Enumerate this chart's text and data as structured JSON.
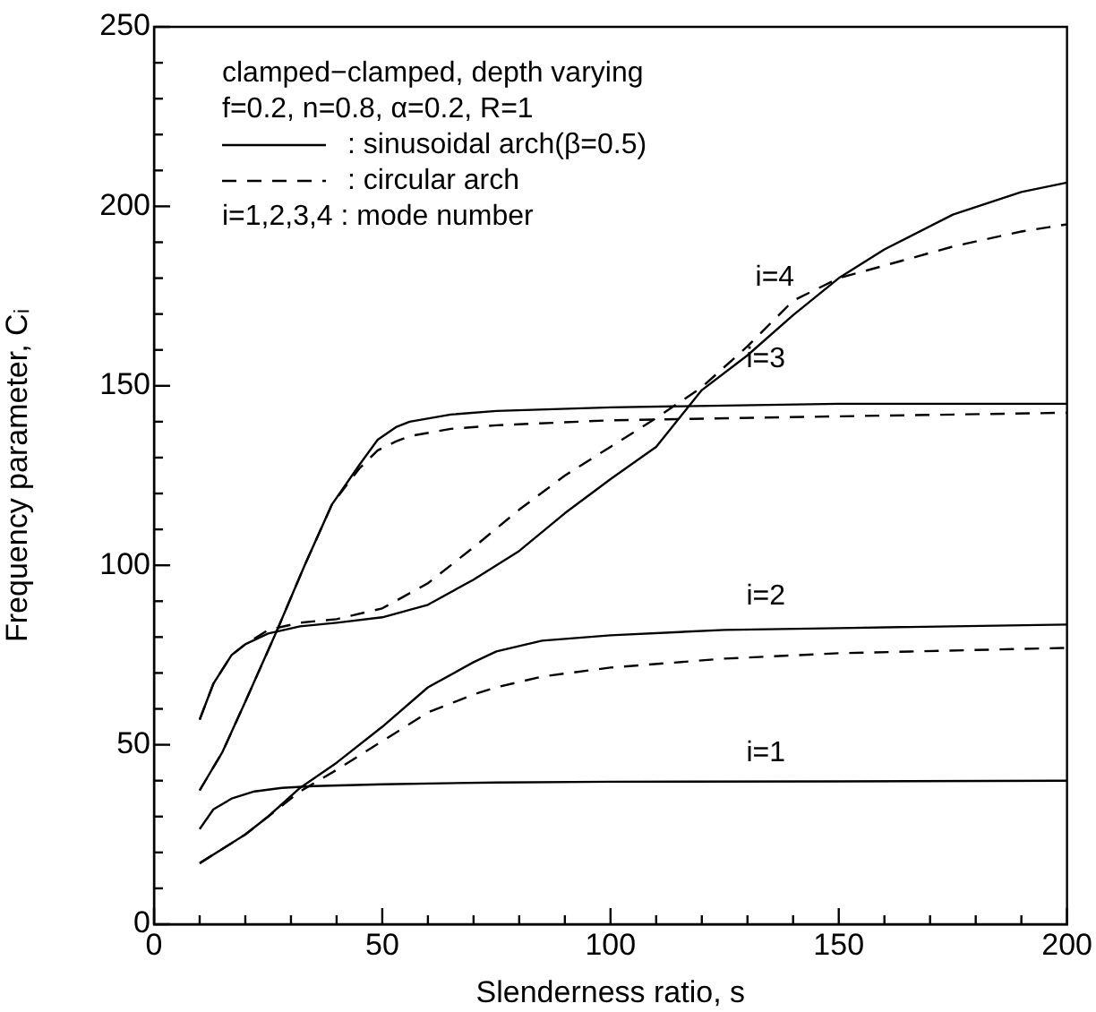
{
  "chart_data": {
    "type": "line",
    "xlabel": "Slenderness ratio, s",
    "ylabel": "Frequency parameter, Cᵢ",
    "xlim": [
      0,
      200
    ],
    "ylim": [
      0,
      250
    ],
    "xticks": [
      0,
      {
        "value": 10,
        "label": null
      },
      {
        "value": 20,
        "label": null
      },
      {
        "value": 30,
        "label": null
      },
      {
        "value": 40,
        "label": null
      },
      50,
      {
        "value": 60,
        "label": null
      },
      {
        "value": 70,
        "label": null
      },
      {
        "value": 80,
        "label": null
      },
      {
        "value": 90,
        "label": null
      },
      100,
      {
        "value": 110,
        "label": null
      },
      {
        "value": 120,
        "label": null
      },
      {
        "value": 130,
        "label": null
      },
      {
        "value": 140,
        "label": null
      },
      150,
      {
        "value": 160,
        "label": null
      },
      {
        "value": 170,
        "label": null
      },
      {
        "value": 180,
        "label": null
      },
      {
        "value": 190,
        "label": null
      },
      200
    ],
    "yticks": [
      0,
      {
        "value": 10,
        "label": null
      },
      {
        "value": 20,
        "label": null
      },
      {
        "value": 30,
        "label": null
      },
      {
        "value": 40,
        "label": null
      },
      50,
      {
        "value": 60,
        "label": null
      },
      {
        "value": 70,
        "label": null
      },
      {
        "value": 80,
        "label": null
      },
      {
        "value": 90,
        "label": null
      },
      100,
      {
        "value": 110,
        "label": null
      },
      {
        "value": 120,
        "label": null
      },
      {
        "value": 130,
        "label": null
      },
      {
        "value": 140,
        "label": null
      },
      150,
      {
        "value": 160,
        "label": null
      },
      {
        "value": 170,
        "label": null
      },
      {
        "value": 180,
        "label": null
      },
      {
        "value": 190,
        "label": null
      },
      200,
      {
        "value": 210,
        "label": null
      },
      {
        "value": 220,
        "label": null
      },
      {
        "value": 230,
        "label": null
      },
      {
        "value": 240,
        "label": null
      },
      250
    ],
    "grid": false,
    "legend": "top left",
    "marker": "none",
    "series": [
      {
        "color": "#000000",
        "line_style": "solid",
        "x": [
          10,
          13,
          17,
          22,
          28,
          35,
          50,
          75,
          100,
          150,
          200
        ],
        "values": [
          26.5,
          32,
          35,
          37,
          38,
          38.5,
          39,
          39.5,
          39.7,
          39.8,
          40
        ]
      },
      {
        "color": "#000000",
        "line_style": "solid",
        "x": [
          10,
          20,
          25,
          32,
          40,
          50,
          60,
          70,
          75,
          85,
          100,
          125,
          150,
          200
        ],
        "values": [
          17,
          25,
          30,
          38,
          45,
          55,
          66,
          73,
          76,
          79,
          80.5,
          82,
          82.5,
          83.5
        ]
      },
      {
        "color": "#000000",
        "line_style": "dashed",
        "x": [
          10,
          20,
          25,
          32,
          40,
          50,
          60,
          70,
          75,
          85,
          100,
          125,
          150,
          200
        ],
        "values": [
          17,
          25,
          30,
          37,
          43,
          51,
          59,
          64,
          66,
          69,
          71.5,
          74,
          75.5,
          77
        ]
      },
      {
        "color": "#000000",
        "line_style": "solid",
        "x": [
          10,
          15,
          20,
          27,
          33,
          39,
          45,
          49,
          53,
          56,
          65,
          75,
          100,
          150,
          200
        ],
        "values": [
          37.3,
          48,
          62,
          82,
          100,
          117,
          128,
          135,
          138.5,
          140,
          142,
          143,
          144,
          145,
          145
        ]
      },
      {
        "color": "#000000",
        "line_style": "dashed",
        "x": [
          10,
          15,
          20,
          27,
          33,
          39,
          45,
          49,
          53,
          56,
          65,
          75,
          100,
          150,
          200
        ],
        "values": [
          37.3,
          48,
          62,
          82,
          100,
          117,
          127,
          132,
          134.5,
          136,
          138,
          139,
          140.4,
          141.5,
          142.5
        ]
      },
      {
        "name": ": sinusoidal arch(β=0.5)",
        "color": "#000000",
        "line_style": "solid",
        "x": [
          10,
          13,
          17,
          20,
          25,
          32,
          40,
          50,
          60,
          70,
          80,
          90,
          100,
          110,
          120,
          130,
          140,
          150,
          160,
          175,
          190,
          200
        ],
        "values": [
          57,
          67,
          75,
          78,
          81,
          83,
          84,
          85.5,
          89,
          96,
          104,
          114.5,
          124,
          133,
          148.8,
          158.5,
          169.7,
          180,
          188,
          197.7,
          204,
          206.6
        ]
      },
      {
        "name": ": circular arch",
        "color": "#000000",
        "line_style": "dashed",
        "x": [
          10,
          13,
          17,
          20,
          25,
          32,
          40,
          50,
          60,
          70,
          80,
          90,
          100,
          110,
          120,
          130,
          140,
          150,
          160,
          175,
          190,
          200
        ],
        "values": [
          57,
          67,
          75,
          78,
          82,
          84,
          85,
          88,
          95,
          105,
          115.5,
          125,
          133,
          141,
          149.6,
          161,
          173.7,
          180,
          183.5,
          188.8,
          193,
          195
        ]
      }
    ],
    "annotations": [
      "clamped−clamped, depth varying",
      "f=0.2, n=0.8, α=0.2, R=1",
      "i=1,2,3,4 : mode number",
      "i=4",
      "i=3",
      "i=2",
      "i=1"
    ]
  }
}
